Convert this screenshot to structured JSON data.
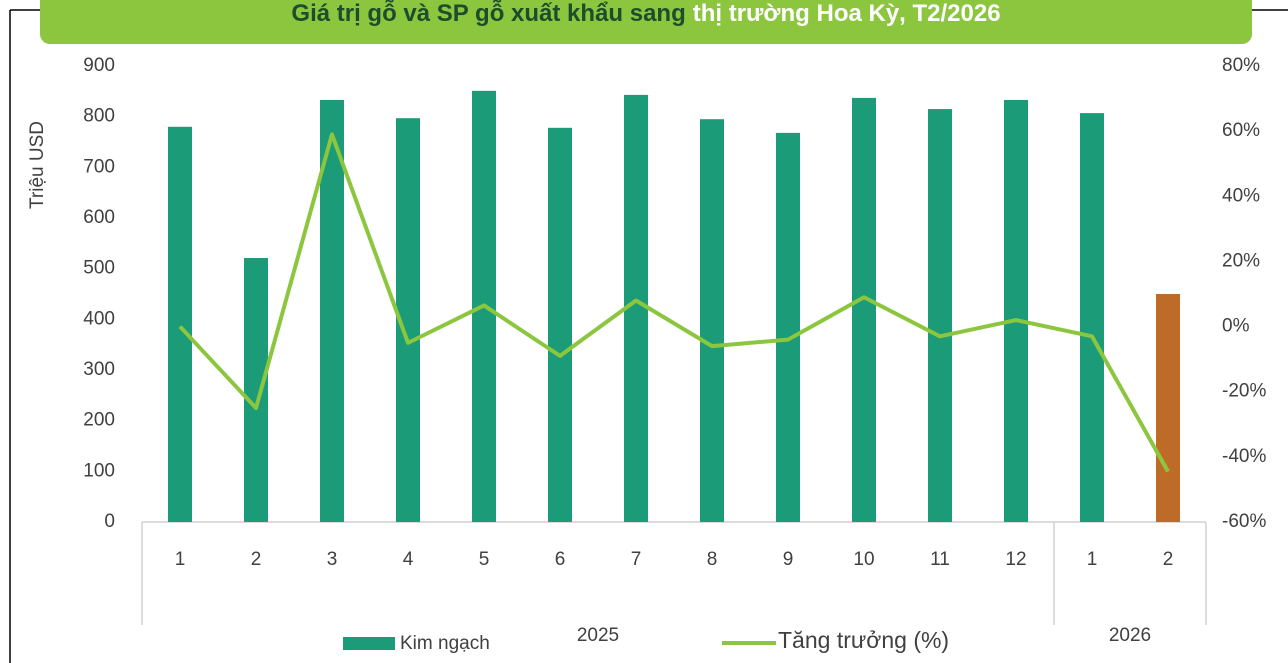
{
  "chart_data": {
    "type": "bar-line",
    "title": [
      "Giá trị gỗ và SP gỗ xuất khẩu sang",
      "thị trường Hoa Kỳ, T2/2026"
    ],
    "y_label": "Triệu USD",
    "categories": [
      "1",
      "2",
      "3",
      "4",
      "5",
      "6",
      "7",
      "8",
      "9",
      "10",
      "11",
      "12",
      "1",
      "2"
    ],
    "category_groups": [
      {
        "label": "2025",
        "count": 12
      },
      {
        "label": "2026",
        "count": 2
      }
    ],
    "series": [
      {
        "name": "Kim ngạch",
        "color": "#1b9b77",
        "highlight_color": "#bf6b28",
        "highlight_index": 13,
        "values": [
          780,
          521,
          833,
          797,
          851,
          778,
          843,
          795,
          768,
          837,
          815,
          833,
          807,
          450
        ]
      },
      {
        "name": "Tăng trưởng (%)",
        "color": "#8cc63f",
        "axis": "y2",
        "values": [
          0,
          -25,
          59,
          -5,
          6.5,
          -9,
          8,
          -6,
          -4,
          9,
          -3,
          2,
          -3,
          -44.5
        ]
      }
    ],
    "ylim": [
      0,
      900
    ],
    "yticks": [
      0,
      100,
      200,
      300,
      400,
      500,
      600,
      700,
      800,
      900
    ],
    "y2lim": [
      -60,
      80
    ],
    "y2ticks": [
      {
        "value": -60,
        "label": "-60%"
      },
      {
        "value": -40,
        "label": "-40%"
      },
      {
        "value": -20,
        "label": "-20%"
      },
      {
        "value": 0,
        "label": "0%"
      },
      {
        "value": 20,
        "label": "20%"
      },
      {
        "value": 40,
        "label": "40%"
      },
      {
        "value": 60,
        "label": "60%"
      },
      {
        "value": 80,
        "label": "80%"
      }
    ]
  }
}
